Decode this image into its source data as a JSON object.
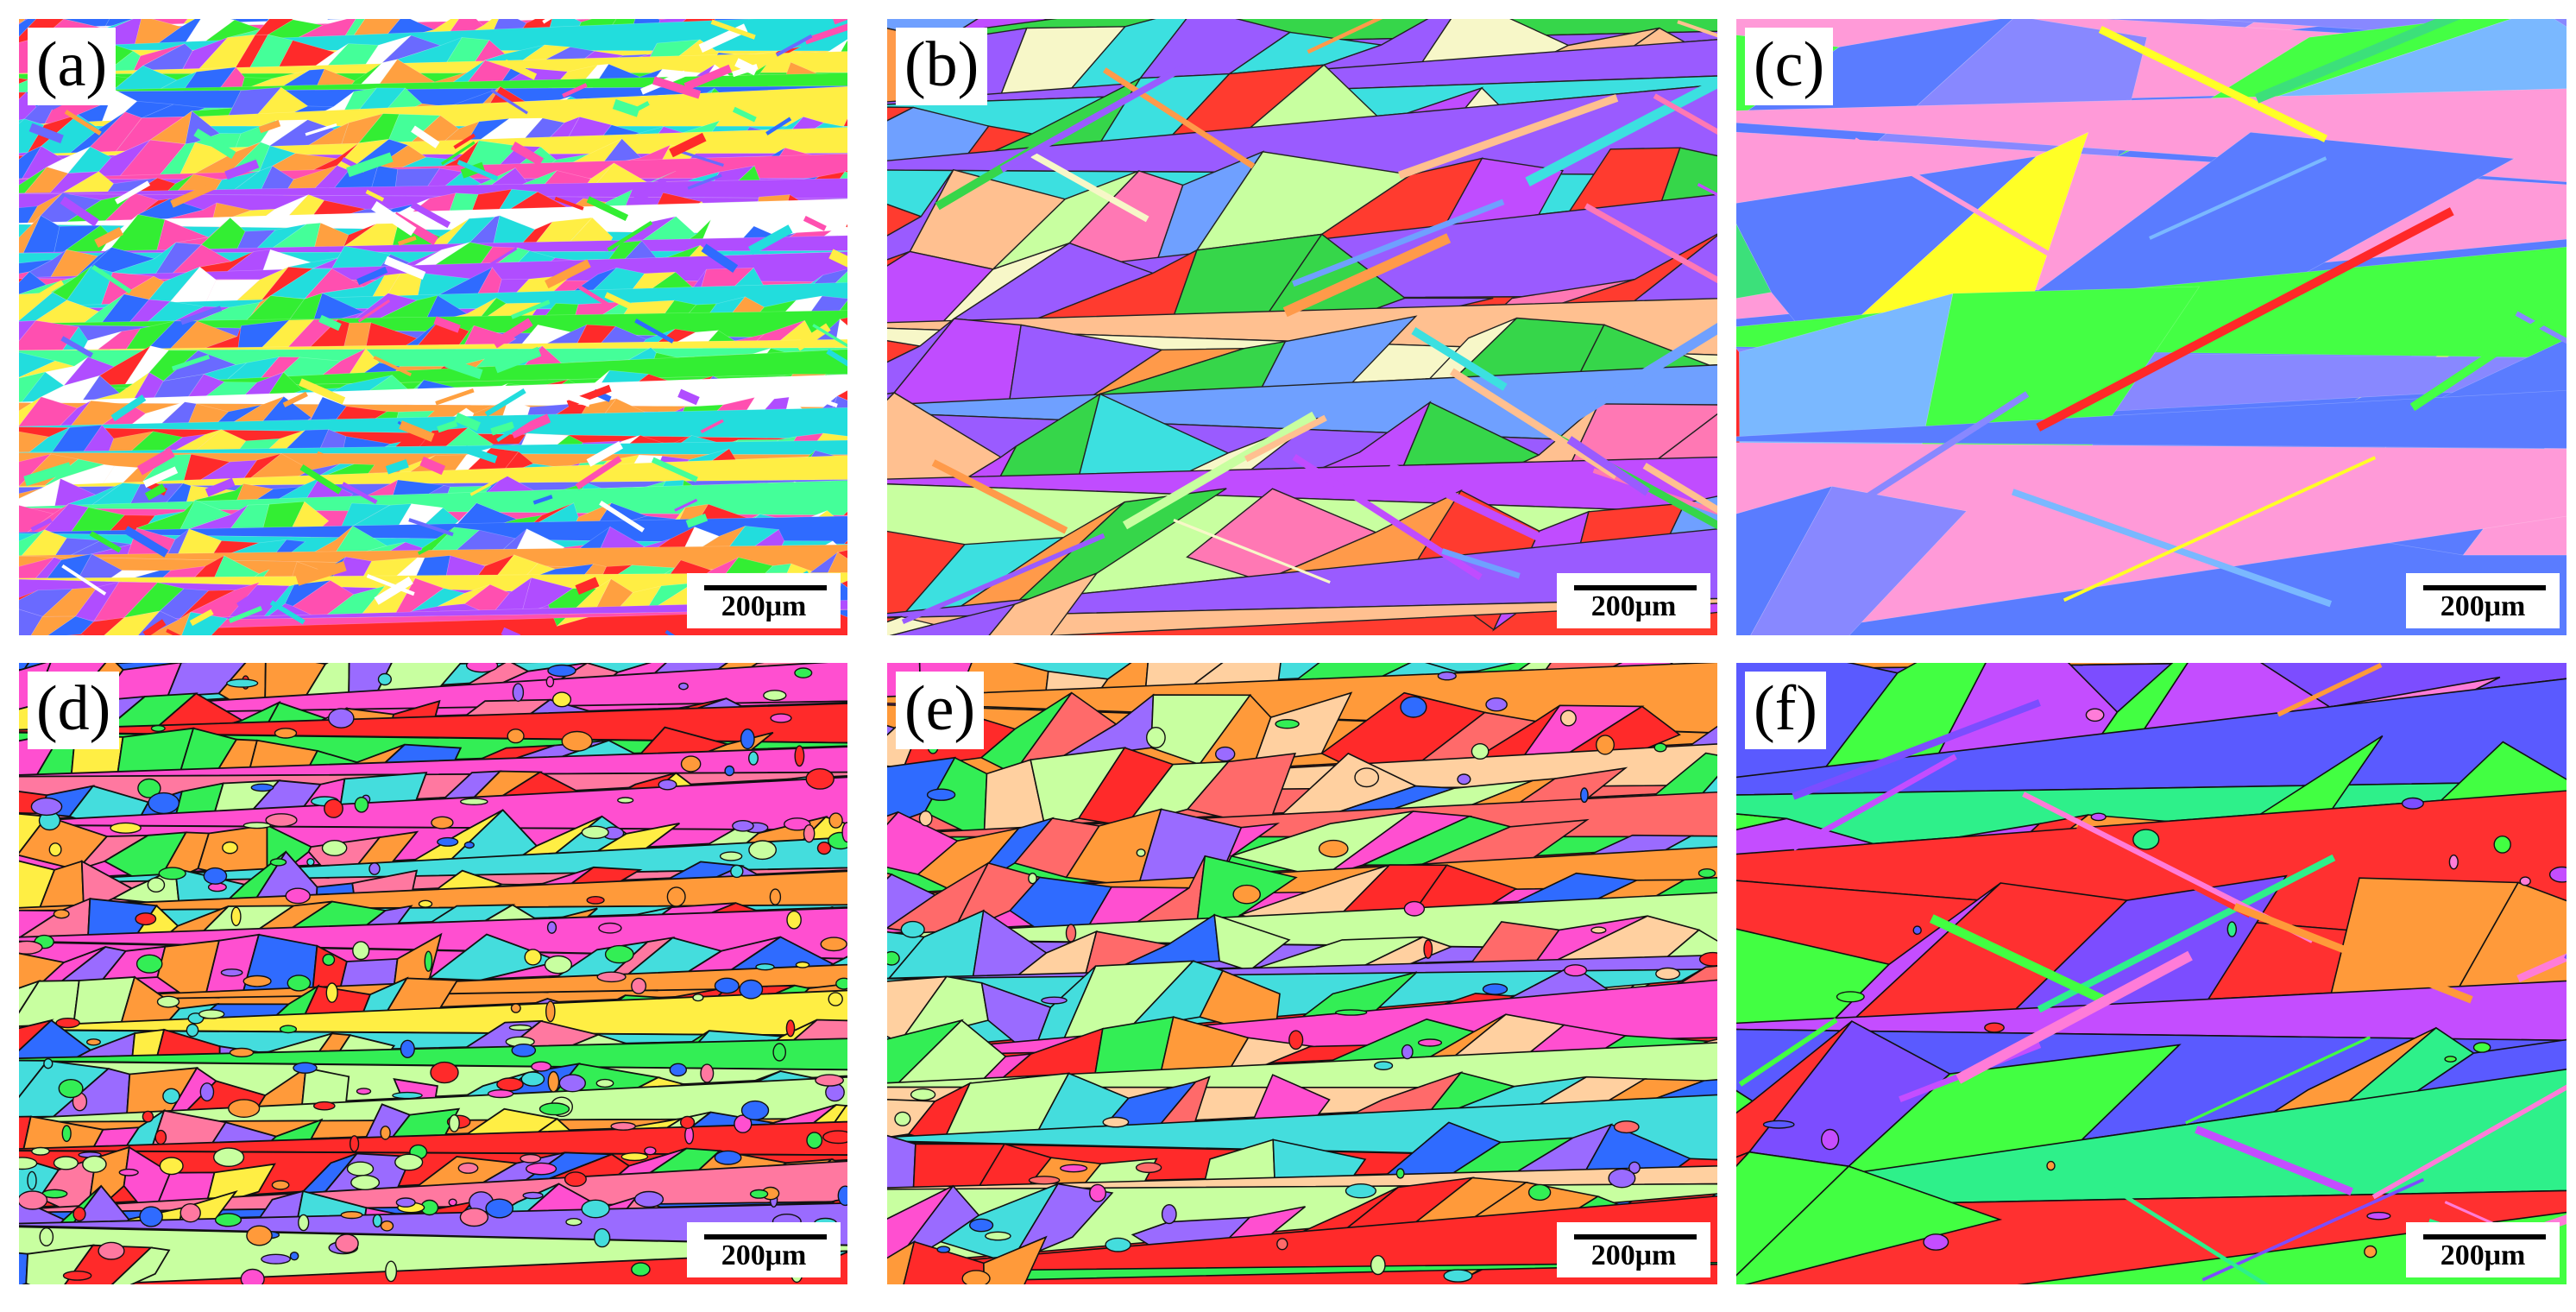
{
  "panels": [
    {
      "id": "a",
      "label": "(a)",
      "scale_bar": "200μm",
      "texture": "fine-equiaxed-grains",
      "palette": [
        "#ff2a2a",
        "#2f6bff",
        "#33ee33",
        "#ff4fb0",
        "#b04dff",
        "#22dddd",
        "#ffa040",
        "#ffffff",
        "#ffee44",
        "#6a6aff",
        "#44ff99"
      ]
    },
    {
      "id": "b",
      "label": "(b)",
      "scale_bar": "200μm",
      "texture": "coarse-grains-with-twins",
      "palette": [
        "#ff3b2f",
        "#9a5bff",
        "#36d64a",
        "#ff9a4a",
        "#f7f7c8",
        "#6fa0ff",
        "#ff78b4",
        "#3ce0e0",
        "#c8ffa0",
        "#c04cff",
        "#ffc090"
      ]
    },
    {
      "id": "c",
      "label": "(c)",
      "scale_bar": "200μm",
      "texture": "very-coarse-grains",
      "palette": [
        "#5a7cff",
        "#ffff26",
        "#ff2828",
        "#3ce07a",
        "#7ab8ff",
        "#ff9ad8",
        "#8888ff",
        "#44ff44"
      ]
    },
    {
      "id": "d",
      "label": "(d)",
      "scale_bar": "200μm",
      "texture": "columnar-grains-with-substructure",
      "palette": [
        "#ff2a2a",
        "#ff4fd0",
        "#33ee55",
        "#ff9a3a",
        "#9a6bff",
        "#44dddd",
        "#2f6bff",
        "#c8ffa0",
        "#ffee44",
        "#ff78a0"
      ]
    },
    {
      "id": "e",
      "label": "(e)",
      "scale_bar": "200μm",
      "texture": "columnar-grains",
      "palette": [
        "#ff2a2a",
        "#ff6a6a",
        "#33ee55",
        "#ff9a3a",
        "#9a6bff",
        "#2f6bff",
        "#ffd0a0",
        "#c8ffa0",
        "#ff4fd0",
        "#44dddd"
      ]
    },
    {
      "id": "f",
      "label": "(f)",
      "scale_bar": "200μm",
      "texture": "coarse-grains-with-twins",
      "palette": [
        "#42ff42",
        "#ff3030",
        "#7c4dff",
        "#5a5aff",
        "#ff7cd8",
        "#2ef08a",
        "#ff9a3a",
        "#c44dff"
      ]
    }
  ]
}
